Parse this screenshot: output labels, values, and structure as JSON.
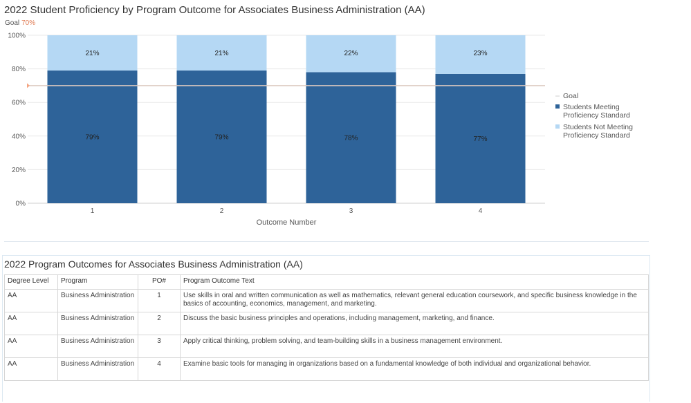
{
  "chart_data": {
    "type": "bar",
    "stacked": true,
    "title": "2022 Student Proficiency by Program Outcome for Associates Business Administration (AA)",
    "goal_label": "Goal",
    "goal_value_label": "70%",
    "goal_value": 70,
    "categories": [
      "1",
      "2",
      "3",
      "4"
    ],
    "xlabel": "Outcome Number",
    "ylim": [
      0,
      100
    ],
    "y_ticks": [
      "0%",
      "20%",
      "40%",
      "60%",
      "80%",
      "100%"
    ],
    "series": [
      {
        "name": "Students Meeting Proficiency Standard",
        "values": [
          79,
          79,
          78,
          77
        ],
        "labels": [
          "79%",
          "79%",
          "78%",
          "77%"
        ],
        "color": "#2e6399"
      },
      {
        "name": "Students Not Meeting Proficiency Standard",
        "values": [
          21,
          21,
          22,
          23
        ],
        "labels": [
          "21%",
          "21%",
          "22%",
          "23%"
        ],
        "color": "#b5d8f4"
      }
    ],
    "legend": {
      "position": "right",
      "items": [
        {
          "key": "goal",
          "lines": [
            "Goal"
          ],
          "color": "#dddddd"
        },
        {
          "key": "meeting",
          "lines": [
            "Students Meeting",
            "Proficiency Standard"
          ],
          "color": "#2e6399"
        },
        {
          "key": "not-meeting",
          "lines": [
            "Students Not Meeting",
            "Proficiency Standard"
          ],
          "color": "#b5d8f4"
        }
      ]
    },
    "grid": true,
    "goal_line_color": "#dcc9c0",
    "goal_marker_color": "#f4a582"
  },
  "table": {
    "title": "2022 Program Outcomes for Associates Business Administration (AA)",
    "headers": [
      "Degree Level",
      "Program",
      "PO#",
      "Program Outcome Text"
    ],
    "rows": [
      {
        "degree": "AA",
        "program": "Business Administration",
        "po": "1",
        "text": "Use skills in oral and written communication as well as mathematics, relevant general education coursework, and specific business knowledge in the basics of accounting, economics, management, and marketing."
      },
      {
        "degree": "AA",
        "program": "Business Administration",
        "po": "2",
        "text": "Discuss the basic business principles and operations, including management, marketing, and finance."
      },
      {
        "degree": "AA",
        "program": "Business Administration",
        "po": "3",
        "text": "Apply critical thinking, problem solving, and team-building skills in a business management environment."
      },
      {
        "degree": "AA",
        "program": "Business Administration",
        "po": "4",
        "text": "Examine basic tools for managing in organizations based on a fundamental knowledge of both individual and organizational behavior."
      }
    ]
  }
}
